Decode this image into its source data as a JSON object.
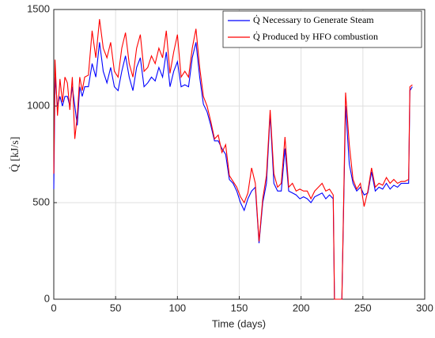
{
  "chart_data": {
    "type": "line",
    "x": [
      0,
      1,
      3,
      5,
      7,
      9,
      11,
      13,
      15,
      17,
      19,
      21,
      23,
      25,
      28,
      31,
      34,
      37,
      40,
      43,
      46,
      49,
      52,
      55,
      58,
      61,
      64,
      67,
      70,
      73,
      76,
      79,
      82,
      85,
      88,
      91,
      94,
      97,
      100,
      103,
      106,
      109,
      112,
      115,
      118,
      121,
      124,
      127,
      130,
      133,
      136,
      139,
      142,
      145,
      148,
      151,
      154,
      157,
      160,
      163,
      166,
      169,
      172,
      175,
      178,
      181,
      184,
      187,
      190,
      193,
      196,
      199,
      202,
      205,
      208,
      211,
      214,
      217,
      220,
      223,
      226,
      227,
      233,
      236,
      239,
      242,
      245,
      248,
      251,
      254,
      257,
      260,
      263,
      266,
      269,
      272,
      275,
      278,
      281,
      284,
      287,
      288,
      290
    ],
    "series": [
      {
        "name": "Q̇ Necessary to Generate Steam",
        "color": "#0000ff",
        "values": [
          570,
          1150,
          1000,
          1050,
          1000,
          1050,
          1050,
          1000,
          1100,
          1000,
          900,
          1100,
          1050,
          1100,
          1100,
          1220,
          1150,
          1330,
          1180,
          1120,
          1200,
          1100,
          1080,
          1180,
          1260,
          1150,
          1080,
          1200,
          1250,
          1100,
          1120,
          1150,
          1130,
          1200,
          1150,
          1280,
          1100,
          1180,
          1230,
          1100,
          1110,
          1100,
          1250,
          1330,
          1150,
          1010,
          970,
          900,
          820,
          820,
          780,
          750,
          620,
          600,
          560,
          500,
          460,
          520,
          560,
          580,
          290,
          500,
          600,
          960,
          600,
          560,
          560,
          780,
          560,
          550,
          540,
          520,
          530,
          520,
          500,
          530,
          540,
          550,
          520,
          540,
          520,
          0,
          0,
          1000,
          700,
          600,
          560,
          580,
          540,
          550,
          660,
          560,
          580,
          570,
          600,
          570,
          590,
          580,
          600,
          600,
          600,
          1080,
          1100
        ]
      },
      {
        "name": "Q̇ Produced by HFO combustion",
        "color": "#ff0000",
        "values": [
          650,
          1240,
          950,
          1140,
          1020,
          1150,
          1120,
          980,
          1150,
          830,
          950,
          1150,
          1080,
          1150,
          1160,
          1390,
          1250,
          1450,
          1300,
          1250,
          1330,
          1180,
          1150,
          1300,
          1380,
          1220,
          1150,
          1300,
          1370,
          1180,
          1200,
          1260,
          1220,
          1300,
          1250,
          1390,
          1170,
          1280,
          1370,
          1150,
          1180,
          1150,
          1300,
          1400,
          1200,
          1050,
          1000,
          920,
          830,
          850,
          760,
          800,
          640,
          610,
          580,
          530,
          500,
          550,
          680,
          600,
          300,
          520,
          640,
          980,
          650,
          580,
          600,
          840,
          580,
          600,
          560,
          570,
          560,
          560,
          520,
          560,
          580,
          600,
          560,
          570,
          540,
          0,
          0,
          1070,
          800,
          620,
          570,
          600,
          480,
          560,
          680,
          580,
          600,
          590,
          630,
          600,
          620,
          600,
          610,
          610,
          620,
          1100,
          1110
        ]
      }
    ],
    "xlim": [
      0,
      300
    ],
    "ylim": [
      0,
      1500
    ],
    "xticks": [
      0,
      50,
      100,
      150,
      200,
      250,
      300
    ],
    "yticks": [
      0,
      500,
      1000,
      1500
    ],
    "xlabel": "Time (days)",
    "ylabel": "Q̇ [kJ/s]",
    "grid": true,
    "legend": "top-right"
  }
}
